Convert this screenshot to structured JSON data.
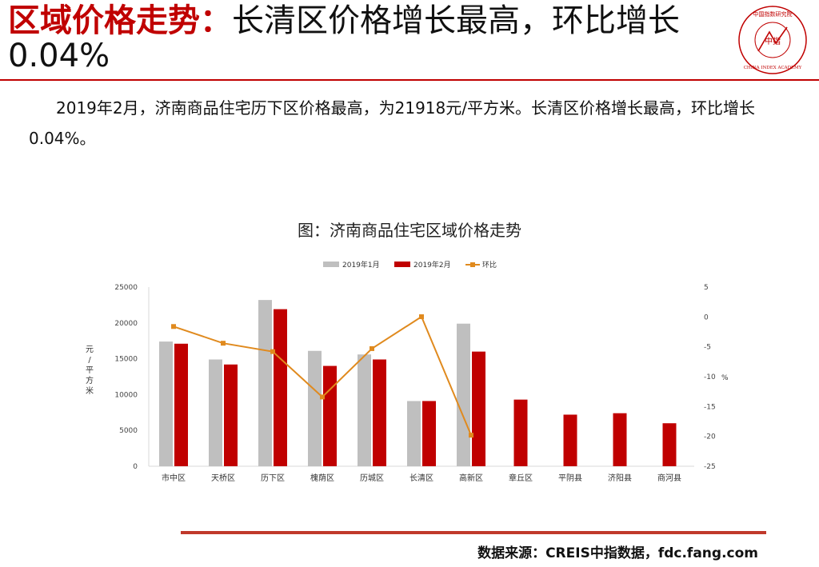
{
  "header": {
    "title_highlight": "区域价格走势：",
    "title_rest": "长清区价格增长最高，环比增长0.04%"
  },
  "logo": {
    "text_center": "中指",
    "text_ring": "CHINA INDEX ACADEMY",
    "text_top": "中国指数研究院"
  },
  "description": "2019年2月，济南商品住宅历下区价格最高，为21918元/平方米。长清区价格增长最高，环比增长0.04%。",
  "chart_title": "图：济南商品住宅区域价格走势",
  "chart_data": {
    "type": "bar",
    "categories": [
      "市中区",
      "天桥区",
      "历下区",
      "槐荫区",
      "历城区",
      "长清区",
      "高新区",
      "章丘区",
      "平阴县",
      "济阳县",
      "商河县"
    ],
    "series": [
      {
        "name": "2019年1月",
        "type": "bar",
        "axis": "left",
        "color": "#bfbfbf",
        "values": [
          17400,
          14900,
          23200,
          16100,
          15600,
          9100,
          19900,
          null,
          null,
          null,
          null
        ]
      },
      {
        "name": "2019年2月",
        "type": "bar",
        "axis": "left",
        "color": "#c00000",
        "values": [
          17100,
          14200,
          21918,
          14000,
          14900,
          9100,
          16000,
          9300,
          7200,
          7400,
          6000
        ]
      },
      {
        "name": "环比",
        "type": "line",
        "axis": "right",
        "color": "#e08a1e",
        "values": [
          -1.6,
          -4.4,
          -5.8,
          -13.4,
          -5.3,
          0.04,
          -19.8,
          null,
          null,
          null,
          null
        ]
      }
    ],
    "ylabel": "元/平方米",
    "y2label": "%",
    "ylim": [
      0,
      25000
    ],
    "y2lim": [
      -25,
      5
    ],
    "yticks": [
      0,
      5000,
      10000,
      15000,
      20000,
      25000
    ],
    "y2ticks": [
      5,
      0,
      -5,
      -10,
      -15,
      -20,
      -25
    ],
    "legend": "top-center",
    "grid": false
  },
  "footer": {
    "source": "数据来源：CREIS中指数据，fdc.fang.com"
  },
  "colors": {
    "accent": "#c00000",
    "rule": "#c0392b",
    "line": "#e08a1e",
    "bar_prev": "#bfbfbf"
  }
}
